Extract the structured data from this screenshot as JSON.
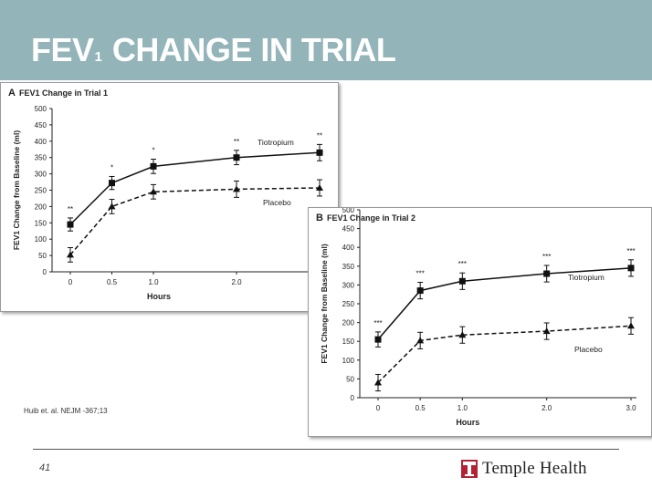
{
  "slide": {
    "title_main": "FEV",
    "title_sub": "1",
    "title_rest": " CHANGE IN TRIAL",
    "citation": "Huib et. al. NEJM -367;13",
    "page_number": "41",
    "logo_text": "Temple Health",
    "colors": {
      "header_band": "#93b4b8",
      "title_text": "#ffffff",
      "logo_red": "#b22234"
    }
  },
  "chart_data": [
    {
      "type": "line",
      "panel_letter": "A",
      "title": "FEV1 Change in Trial 1",
      "xlabel": "Hours",
      "ylabel": "FEV1 Change from Baseline (ml)",
      "x_ticks": [
        "0",
        "0.5",
        "1.0",
        "2.0"
      ],
      "ylim": [
        0,
        500
      ],
      "y_ticks": [
        0,
        50,
        100,
        150,
        200,
        250,
        300,
        350,
        400,
        450,
        500
      ],
      "x": [
        0,
        0.5,
        1.0,
        2.0,
        3.0
      ],
      "series": [
        {
          "name": "Tiotropium",
          "style": "solid",
          "marker": "square",
          "values": [
            145,
            272,
            323,
            350,
            365
          ],
          "err": [
            20,
            20,
            22,
            22,
            25
          ]
        },
        {
          "name": "Placebo",
          "style": "dashed",
          "marker": "triangle",
          "values": [
            52,
            200,
            245,
            253,
            257
          ],
          "err": [
            22,
            22,
            22,
            25,
            25
          ]
        }
      ],
      "annotations": [
        "**",
        "*",
        "*",
        "**",
        "**"
      ],
      "grid": false
    },
    {
      "type": "line",
      "panel_letter": "B",
      "title": "FEV1 Change in Trial 2",
      "xlabel": "Hours",
      "ylabel": "FEV1 Change from Baseline (ml)",
      "x_ticks": [
        "0",
        "0.5",
        "1.0",
        "2.0",
        "3.0"
      ],
      "ylim": [
        0,
        500
      ],
      "y_ticks": [
        0,
        50,
        100,
        150,
        200,
        250,
        300,
        350,
        400,
        450,
        500
      ],
      "x": [
        0,
        0.5,
        1.0,
        2.0,
        3.0
      ],
      "series": [
        {
          "name": "Tiotropium",
          "style": "solid",
          "marker": "square",
          "values": [
            155,
            285,
            310,
            330,
            345
          ],
          "err": [
            20,
            22,
            22,
            22,
            22
          ]
        },
        {
          "name": "Placebo",
          "style": "dashed",
          "marker": "triangle",
          "values": [
            40,
            152,
            167,
            177,
            191
          ],
          "err": [
            22,
            22,
            22,
            22,
            22
          ]
        }
      ],
      "annotations": [
        "***",
        "***",
        "***",
        "***",
        "***"
      ],
      "grid": false
    }
  ]
}
